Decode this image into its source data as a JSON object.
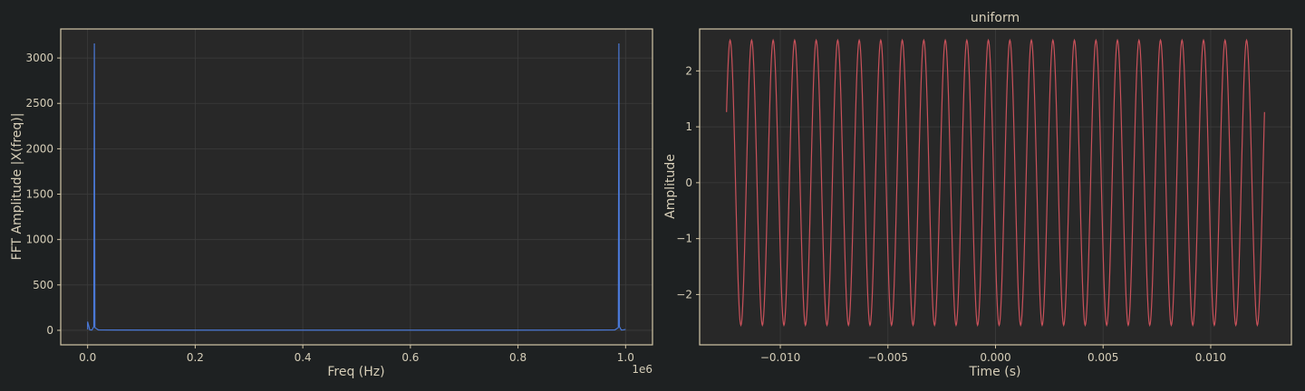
{
  "colors": {
    "figure_bg": "#1e2122",
    "axes_bg": "#282828",
    "axes_edge": "#d3c6a6",
    "grid": "#3c3c3c",
    "text": "#d6ceb8",
    "fft_line": "#4a78d6",
    "signal_line": "#c8515a"
  },
  "chart_data": [
    {
      "type": "line",
      "title": "",
      "xlabel": "Freq (Hz)",
      "ylabel": "FFT Amplitude |X(freq)|",
      "x_offset_label": "1e6",
      "xlim": [
        -0.05,
        1.05
      ],
      "ylim": [
        -160,
        3320
      ],
      "x_ticks": [
        0.0,
        0.2,
        0.4,
        0.6,
        0.8,
        1.0
      ],
      "x_tick_labels": [
        "0.0",
        "0.2",
        "0.4",
        "0.6",
        "0.8",
        "1.0"
      ],
      "y_ticks": [
        0,
        500,
        1000,
        1500,
        2000,
        2500,
        3000
      ],
      "y_tick_labels": [
        "0",
        "500",
        "1000",
        "1500",
        "2000",
        "2500",
        "3000"
      ],
      "grid": true,
      "series": [
        {
          "x": [
            0.0,
            0.0,
            0.004,
            0.008,
            0.0115,
            0.0125,
            0.0135,
            0.02,
            0.06,
            0.2,
            0.4,
            0.6,
            0.8,
            0.94,
            0.98,
            0.9865,
            0.9875,
            0.9885,
            0.992,
            0.996,
            1.0
          ],
          "y": [
            10,
            95,
            5,
            3,
            40,
            3160,
            30,
            4,
            3,
            2,
            2,
            2,
            2,
            3,
            4,
            30,
            3160,
            40,
            3,
            5,
            10
          ]
        }
      ]
    },
    {
      "type": "line",
      "title": "uniform",
      "xlabel": "Time (s)",
      "ylabel": "Amplitude",
      "xlim": [
        -0.01375,
        0.01375
      ],
      "ylim": [
        -2.9,
        2.75
      ],
      "x_ticks": [
        -0.01,
        -0.005,
        0.0,
        0.005,
        0.01
      ],
      "x_tick_labels": [
        "−0.010",
        "−0.005",
        "0.000",
        "0.005",
        "0.010"
      ],
      "y_ticks": [
        -2,
        -1,
        0,
        1,
        2
      ],
      "y_tick_labels": [
        "−2",
        "−1",
        "0",
        "1",
        "2"
      ],
      "grid": true,
      "signal": {
        "function": "amplitude * sin(2*pi*frequency*t + phase)",
        "amplitude": 2.55,
        "frequency_hz": 1000,
        "phase_rad": 3.66,
        "t_start": -0.0125,
        "t_end": 0.0125,
        "samples": 1200
      }
    }
  ]
}
